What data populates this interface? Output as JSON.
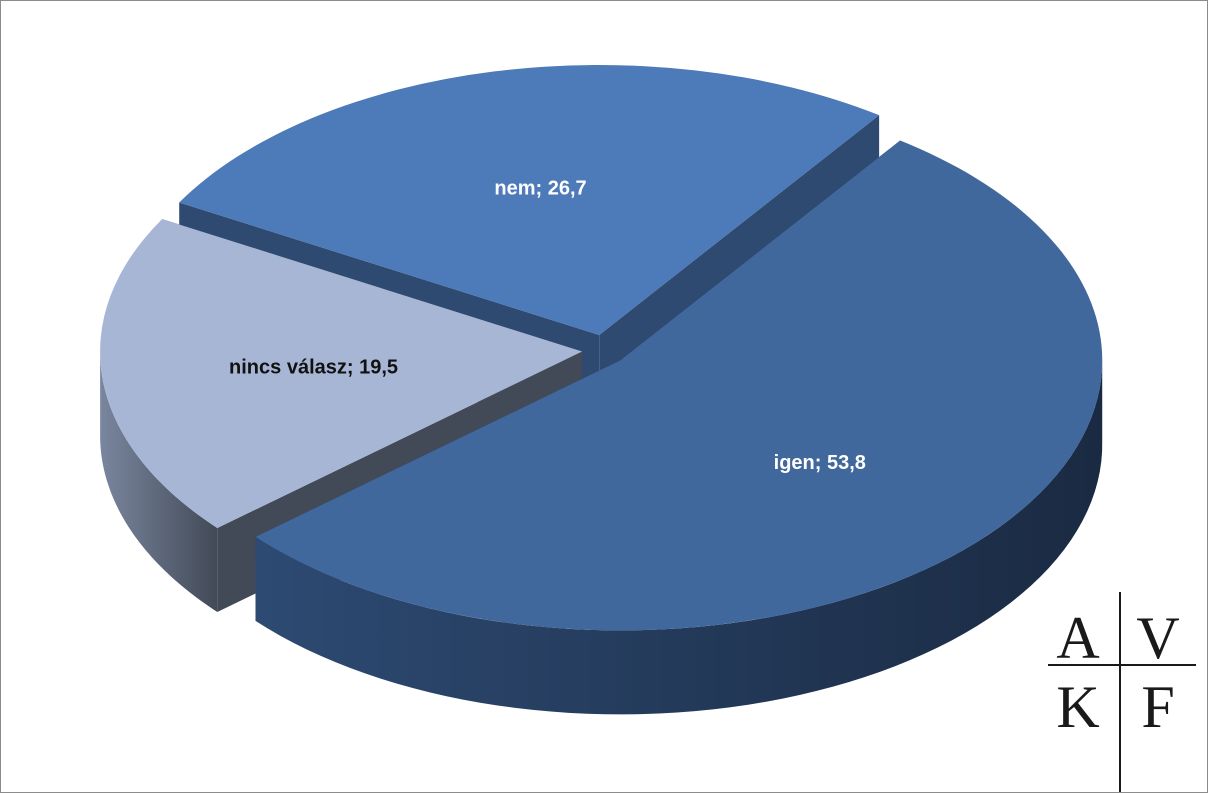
{
  "chart_data": {
    "type": "pie",
    "style": "3d-exploded",
    "slices": [
      {
        "label": "igen",
        "value": 53.8,
        "display": "igen; 53,8",
        "top": "#41689d",
        "side_light": "#2d4a72",
        "side_dark": "#1a2a42",
        "label_color": "#ffffff"
      },
      {
        "label": "nincs válasz",
        "value": 19.5,
        "display": "nincs válasz; 19,5",
        "top": "#a8b6d6",
        "side_light": "#7a869f",
        "side_dark": "#424a57",
        "label_color": "#111111"
      },
      {
        "label": "nem",
        "value": 26.7,
        "display": "nem; 26,7",
        "top": "#4d7ab8",
        "side_light": "#3e6595",
        "side_dark": "#2e4a70",
        "label_color": "#ffffff"
      }
    ]
  },
  "logo": {
    "letters": [
      "A",
      "V",
      "K",
      "F"
    ],
    "color": "#1a1a1a"
  }
}
